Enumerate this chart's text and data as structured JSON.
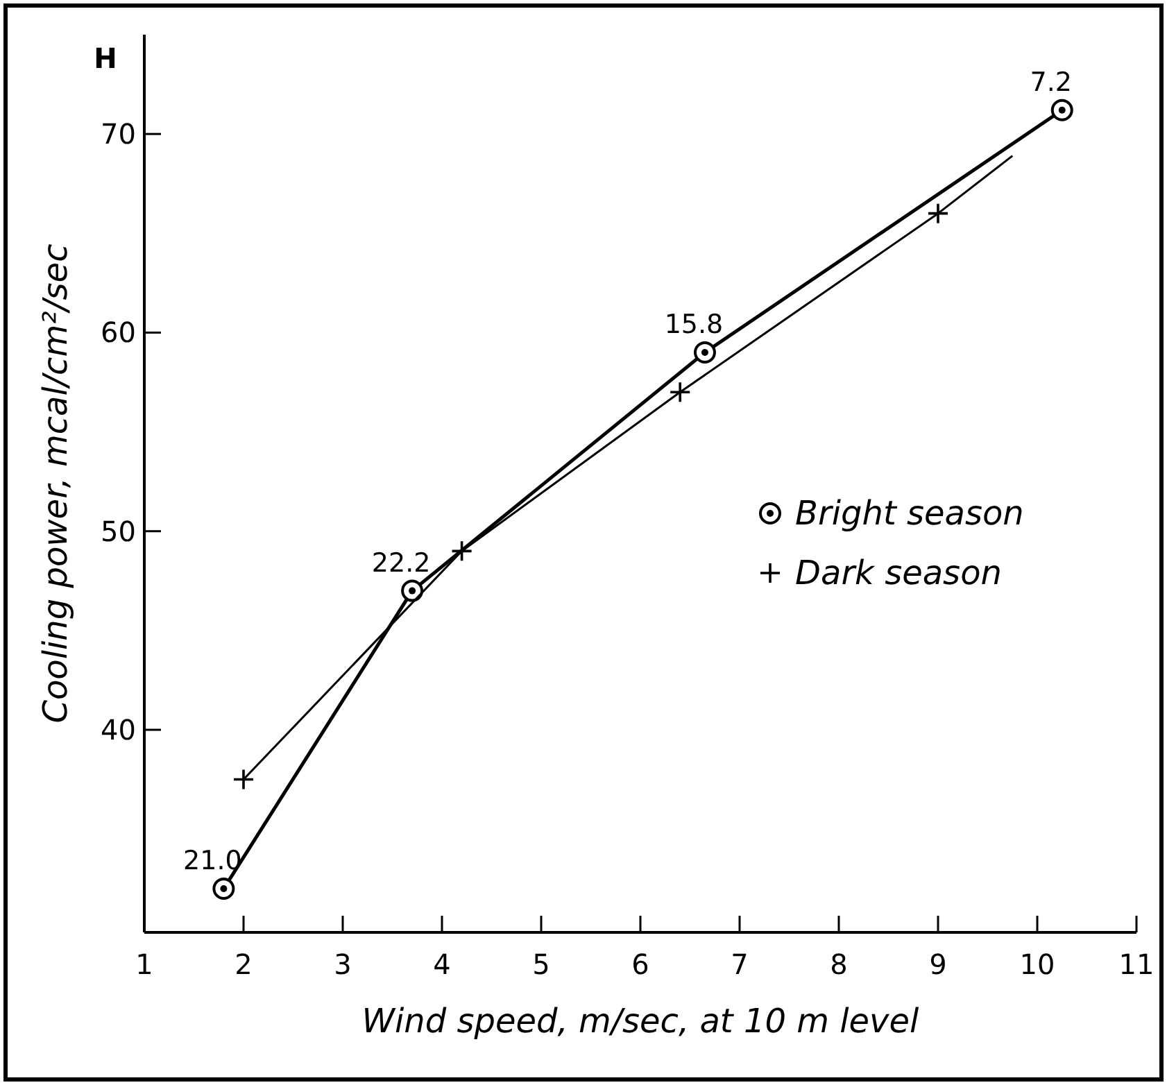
{
  "chart_data": {
    "type": "line",
    "xlabel": "Wind speed, m/sec, at 10 m level",
    "ylabel": "Cooling power, mcal/cm²/sec",
    "xlim": [
      1,
      11
    ],
    "ylim": [
      29.8,
      75
    ],
    "xticks": [
      1,
      2,
      3,
      4,
      5,
      6,
      7,
      8,
      9,
      10,
      11
    ],
    "yticks": [
      40,
      50,
      60,
      70
    ],
    "legend": "right",
    "series": [
      {
        "name": "Bright season",
        "marker": "circle",
        "color": "#000000",
        "x": [
          1.8,
          3.7,
          6.65,
          10.25
        ],
        "values": [
          32,
          47,
          59,
          71.2
        ]
      },
      {
        "marker": "none",
        "color": "#000000",
        "x": [
          2,
          4.2,
          6.4,
          9,
          9.75
        ],
        "values": [
          37.5,
          49,
          57,
          66,
          68.9
        ]
      },
      {
        "name": "Dark season",
        "type": "scatter",
        "marker": "cross",
        "color": "#000000",
        "x": [
          2,
          4.2,
          6.4,
          9
        ],
        "values": [
          37.5,
          49,
          57,
          66
        ]
      }
    ],
    "annotations": [
      "H",
      {
        "text": "21.0",
        "x": 1.8,
        "y": 32
      },
      {
        "text": "22.2",
        "x": 3.7,
        "y": 47
      },
      {
        "text": "15.8",
        "x": 6.65,
        "y": 59
      },
      {
        "text": "7.2",
        "x": 10.25,
        "y": 71.2
      }
    ]
  }
}
